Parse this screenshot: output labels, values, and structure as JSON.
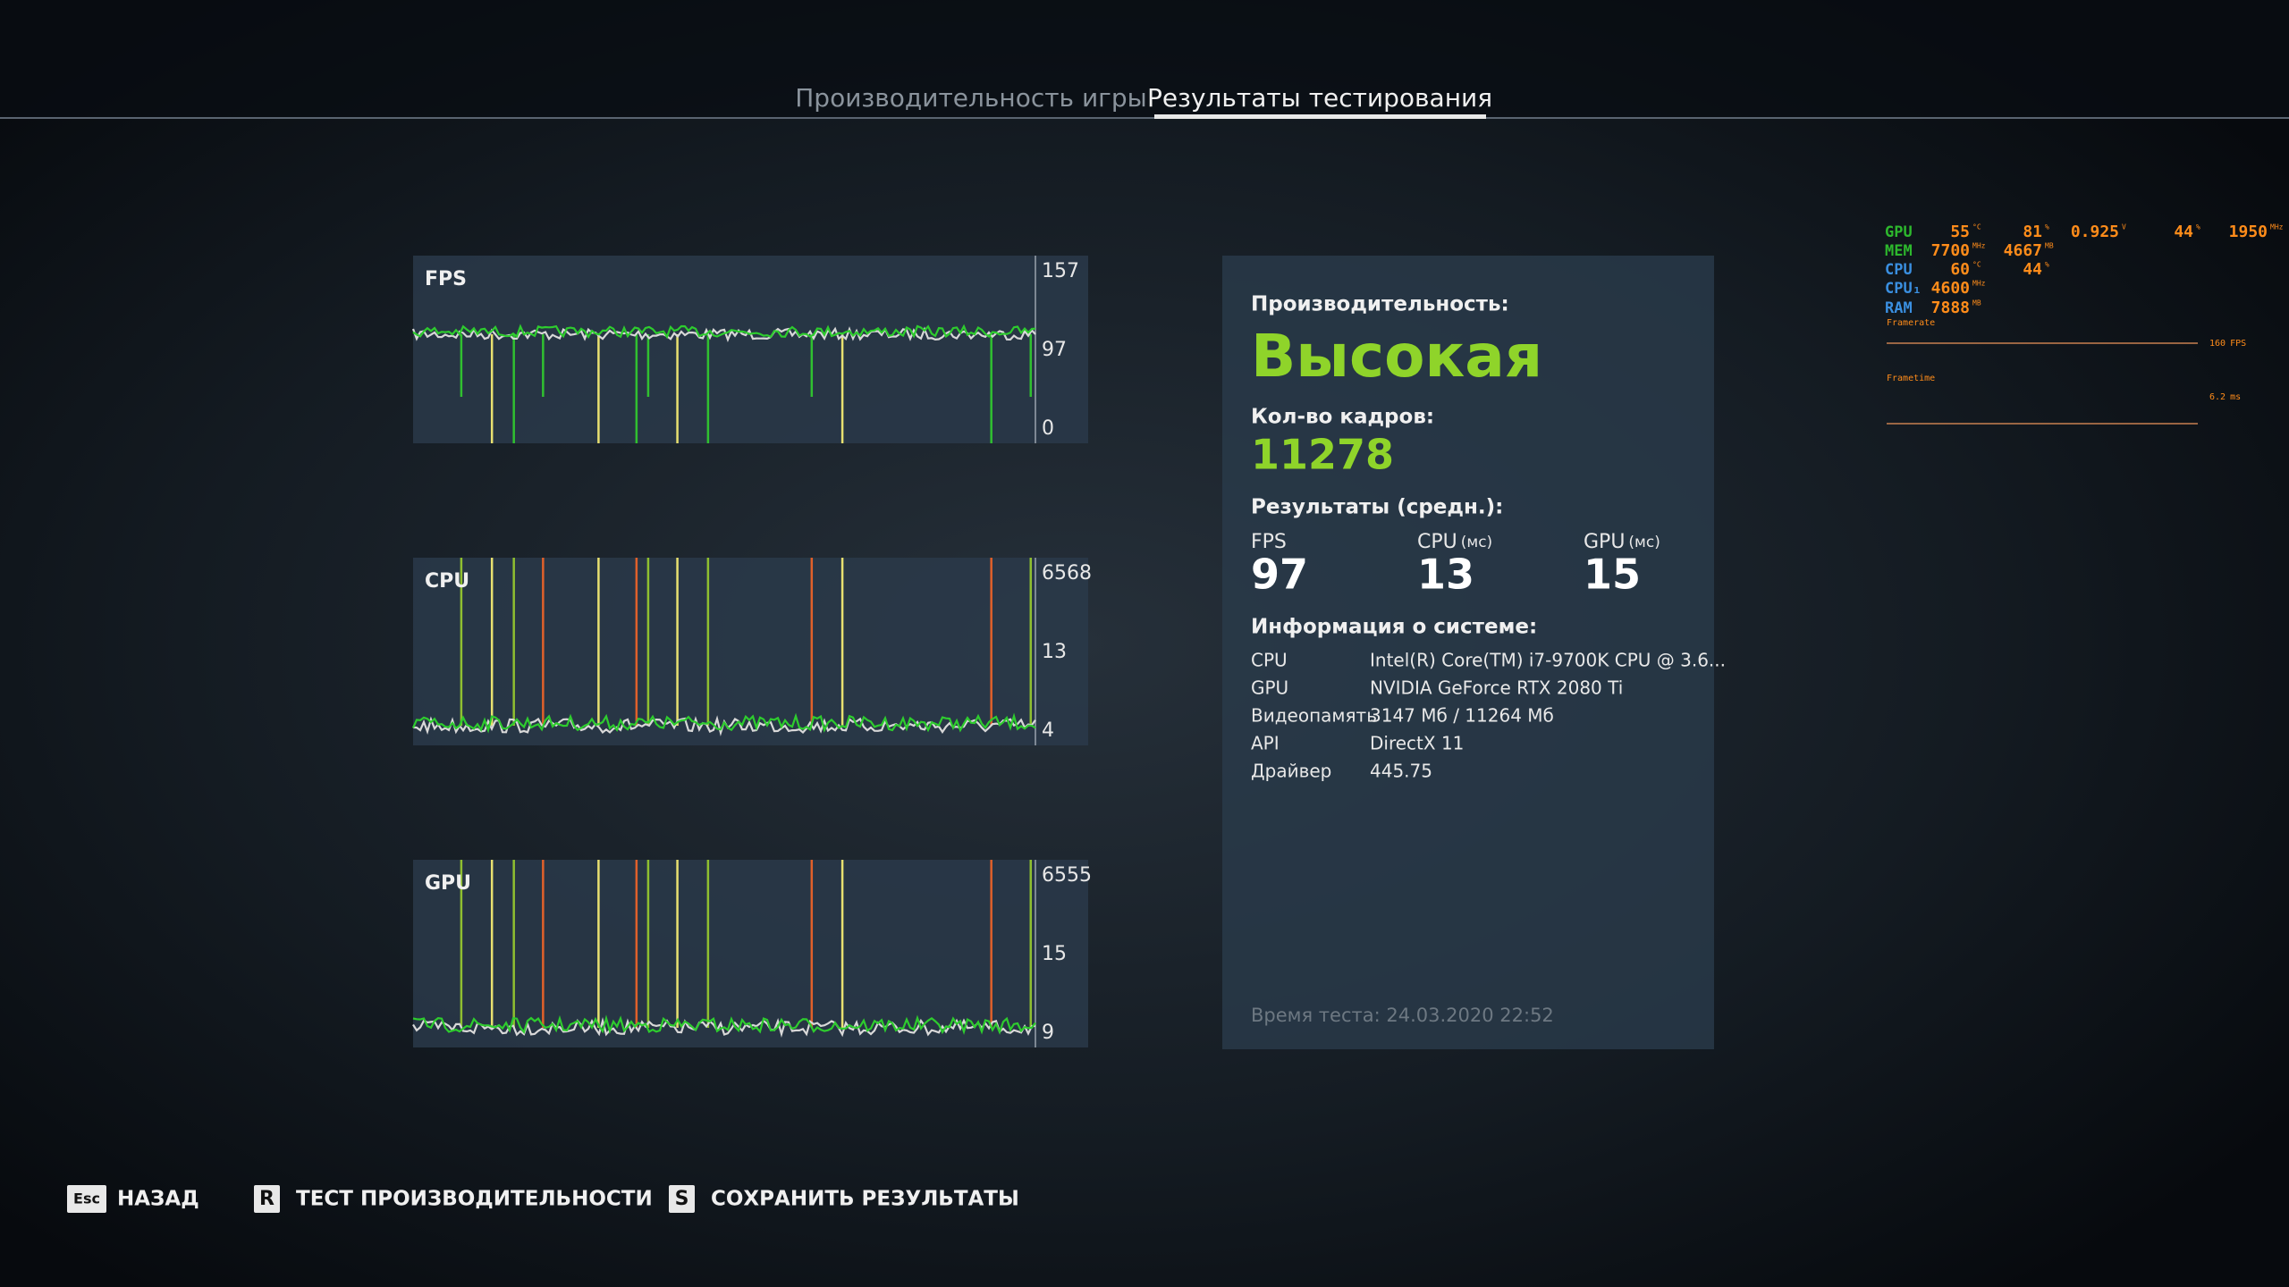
{
  "tabs": [
    "Производительность игры",
    "Результаты тестирования"
  ],
  "graphs": [
    {
      "label": "FPS",
      "scale": [
        157,
        97,
        0
      ]
    },
    {
      "label": "CPU",
      "scale": [
        6568,
        13,
        4
      ]
    },
    {
      "label": "GPU",
      "scale": [
        6555,
        15,
        9
      ]
    }
  ],
  "summary": {
    "performance_label": "Производительность:",
    "performance": "Высокая",
    "frames_label": "Кол-во кадров:",
    "frames": 11278,
    "averages_label": "Результаты (средн.):",
    "averages": [
      {
        "name": "FPS",
        "value": 97
      },
      {
        "name": "CPU",
        "unit": "(мс)",
        "value": 13
      },
      {
        "name": "GPU",
        "unit": "(мс)",
        "value": 15
      }
    ],
    "system_label": "Информация о системе:",
    "system": [
      [
        "CPU",
        "Intel(R) Core(TM) i7-9700K CPU @ 3.6..."
      ],
      [
        "GPU",
        "NVIDIA GeForce RTX 2080 Ti"
      ],
      [
        "Видеопамять",
        "3147 Мб / 11264 Мб"
      ],
      [
        "API",
        "DirectX 11"
      ],
      [
        "Драйвер",
        "445.75"
      ]
    ],
    "test_time": "Время теста: 24.03.2020 22:52"
  },
  "footer": [
    {
      "key": "Esc",
      "label": "НАЗАД"
    },
    {
      "key": "R",
      "label": "ТЕСТ ПРОИЗВОДИТЕЛЬНОСТИ"
    },
    {
      "key": "S",
      "label": "СОХРАНИТЬ РЕЗУЛЬТАТЫ"
    }
  ],
  "osd": {
    "rows": [
      {
        "label": "GPU",
        "items": [
          {
            "value": 55,
            "unit": "°C"
          },
          {
            "value": 81,
            "unit": "%"
          },
          {
            "value": 0.925,
            "unit": "V"
          },
          {
            "value": 44,
            "unit": "%"
          },
          {
            "value": 1950,
            "unit": "MHz"
          }
        ]
      },
      {
        "label": "MEM",
        "items": [
          {
            "value": 7700,
            "unit": "MHz"
          },
          {
            "value": 4667,
            "unit": "MB"
          }
        ]
      },
      {
        "label": "CPU",
        "items": [
          {
            "value": 60,
            "unit": "°C"
          },
          {
            "value": 44,
            "unit": "%"
          }
        ]
      },
      {
        "label": "CPU₁",
        "items": [
          {
            "value": 4600,
            "unit": "MHz"
          }
        ]
      },
      {
        "label": "RAM",
        "items": [
          {
            "value": 7888,
            "unit": "MB"
          }
        ]
      }
    ],
    "framerate": {
      "label": "Framerate",
      "value": 160,
      "unit": "FPS"
    },
    "frametime": {
      "label": "Frametime",
      "value": 6.2,
      "unit": "ms"
    }
  }
}
